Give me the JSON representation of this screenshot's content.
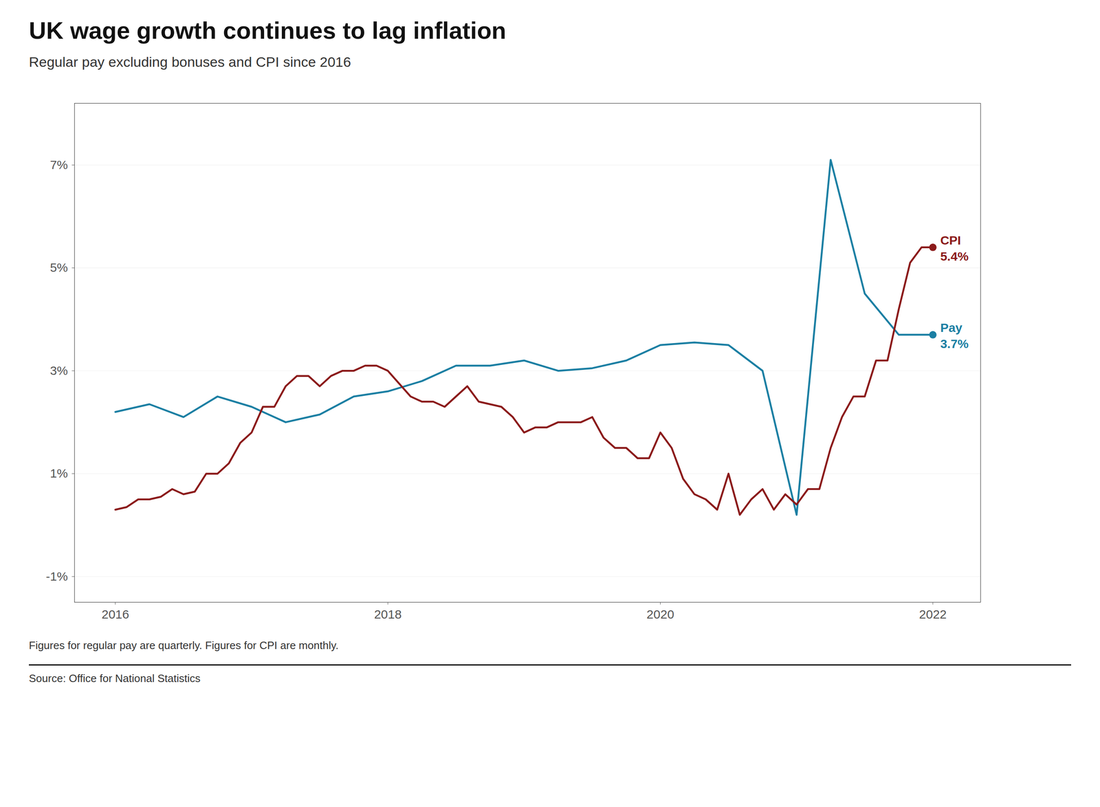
{
  "chart_data": {
    "type": "line",
    "title": "UK wage growth continues to lag inflation",
    "subtitle": "Regular pay excluding bonuses and CPI since 2016",
    "footer_note": "Figures for regular pay are quarterly. Figures for CPI are monthly.",
    "source": "Source: Office for National Statistics",
    "xlim": [
      2015.7,
      2022.35
    ],
    "xticks": [
      2016,
      2018,
      2020,
      2022
    ],
    "ylim": [
      -1.5,
      8.2
    ],
    "yticks": [
      {
        "value": -1,
        "label": "-1%"
      },
      {
        "value": 1,
        "label": "1%"
      },
      {
        "value": 3,
        "label": "3%"
      },
      {
        "value": 5,
        "label": "5%"
      },
      {
        "value": 7,
        "label": "7%"
      }
    ],
    "grid": true,
    "series": [
      {
        "name": "Pay",
        "color": "#1B7FA3",
        "x": [
          2016.0,
          2016.25,
          2016.5,
          2016.75,
          2017.0,
          2017.25,
          2017.5,
          2017.75,
          2018.0,
          2018.25,
          2018.5,
          2018.75,
          2019.0,
          2019.25,
          2019.5,
          2019.75,
          2020.0,
          2020.25,
          2020.5,
          2020.75,
          2021.0,
          2021.25,
          2021.5,
          2021.75,
          2022.0
        ],
        "values": [
          2.2,
          2.35,
          2.1,
          2.5,
          2.3,
          2.0,
          2.15,
          2.5,
          2.6,
          2.8,
          3.1,
          3.1,
          3.2,
          3.0,
          3.05,
          3.2,
          3.5,
          3.55,
          3.5,
          3.0,
          0.2,
          7.1,
          4.5,
          3.7,
          3.7
        ]
      },
      {
        "name": "CPI",
        "color": "#8B1A1A",
        "x": [
          2016.0,
          2016.083,
          2016.167,
          2016.25,
          2016.333,
          2016.417,
          2016.5,
          2016.583,
          2016.667,
          2016.75,
          2016.833,
          2016.917,
          2017.0,
          2017.083,
          2017.167,
          2017.25,
          2017.333,
          2017.417,
          2017.5,
          2017.583,
          2017.667,
          2017.75,
          2017.833,
          2017.917,
          2018.0,
          2018.083,
          2018.167,
          2018.25,
          2018.333,
          2018.417,
          2018.5,
          2018.583,
          2018.667,
          2018.75,
          2018.833,
          2018.917,
          2019.0,
          2019.083,
          2019.167,
          2019.25,
          2019.333,
          2019.417,
          2019.5,
          2019.583,
          2019.667,
          2019.75,
          2019.833,
          2019.917,
          2020.0,
          2020.083,
          2020.167,
          2020.25,
          2020.333,
          2020.417,
          2020.5,
          2020.583,
          2020.667,
          2020.75,
          2020.833,
          2020.917,
          2021.0,
          2021.083,
          2021.167,
          2021.25,
          2021.333,
          2021.417,
          2021.5,
          2021.583,
          2021.667,
          2021.75,
          2021.833,
          2021.917,
          2022.0
        ],
        "values": [
          0.3,
          0.35,
          0.5,
          0.5,
          0.55,
          0.7,
          0.6,
          0.65,
          1.0,
          1.0,
          1.2,
          1.6,
          1.8,
          2.3,
          2.3,
          2.7,
          2.9,
          2.9,
          2.7,
          2.9,
          3.0,
          3.0,
          3.1,
          3.1,
          3.0,
          2.75,
          2.5,
          2.4,
          2.4,
          2.3,
          2.5,
          2.7,
          2.4,
          2.35,
          2.3,
          2.1,
          1.8,
          1.9,
          1.9,
          2.0,
          2.0,
          2.0,
          2.1,
          1.7,
          1.5,
          1.5,
          1.3,
          1.3,
          1.8,
          1.5,
          0.9,
          0.6,
          0.5,
          0.3,
          1.0,
          0.2,
          0.5,
          0.7,
          0.3,
          0.6,
          0.4,
          0.7,
          0.7,
          1.5,
          2.1,
          2.5,
          2.5,
          3.2,
          3.2,
          4.2,
          5.1,
          5.4,
          5.4
        ]
      }
    ],
    "annotations": [
      {
        "x": 2022.0,
        "y": 5.4,
        "text": "CPI\n5.4%",
        "color": "#8B1A1A"
      },
      {
        "x": 2022.0,
        "y": 3.7,
        "text": "Pay\n3.7%",
        "color": "#1B7FA3"
      }
    ]
  }
}
